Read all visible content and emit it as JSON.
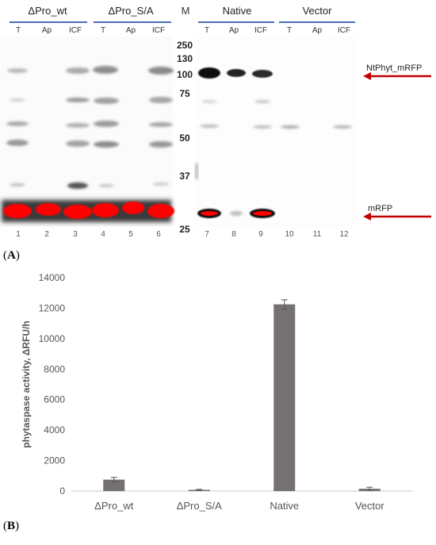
{
  "blot": {
    "groups": [
      {
        "name": "ΔPro_wt",
        "lanes": [
          "T",
          "Ap",
          "ICF"
        ]
      },
      {
        "name": "ΔPro_S/A",
        "lanes": [
          "T",
          "Ap",
          "ICF"
        ]
      },
      {
        "name": "Native",
        "lanes": [
          "T",
          "Ap",
          "ICF"
        ]
      },
      {
        "name": "Vector",
        "lanes": [
          "T",
          "Ap",
          "ICF"
        ]
      }
    ],
    "marker_header": "M",
    "markers": [
      "250",
      "130",
      "100",
      "75",
      "50",
      "37",
      "25"
    ],
    "lane_numbers": [
      "1",
      "2",
      "3",
      "4",
      "5",
      "6",
      "7",
      "8",
      "9",
      "10",
      "11",
      "12"
    ],
    "annotations": {
      "top": "NtPhyt_mRFP",
      "bottom": "mRFP"
    },
    "arrow_color": "#c00000",
    "band_color": "#ff0000"
  },
  "panel_labels": {
    "a": "A",
    "b": "B"
  },
  "chart_data": {
    "type": "bar",
    "categories": [
      "ΔPro_wt",
      "ΔPro_S/A",
      "Native",
      "Vector"
    ],
    "values": [
      750,
      80,
      12250,
      150
    ],
    "errors": [
      150,
      30,
      300,
      100
    ],
    "ylabel": "phytaspase activity, ΔRFU/h",
    "ylim": [
      0,
      14000
    ],
    "yticks": [
      "0",
      "2000",
      "4000",
      "6000",
      "8000",
      "10000",
      "12000",
      "14000"
    ],
    "bar_color": "#767171",
    "grid": false
  }
}
